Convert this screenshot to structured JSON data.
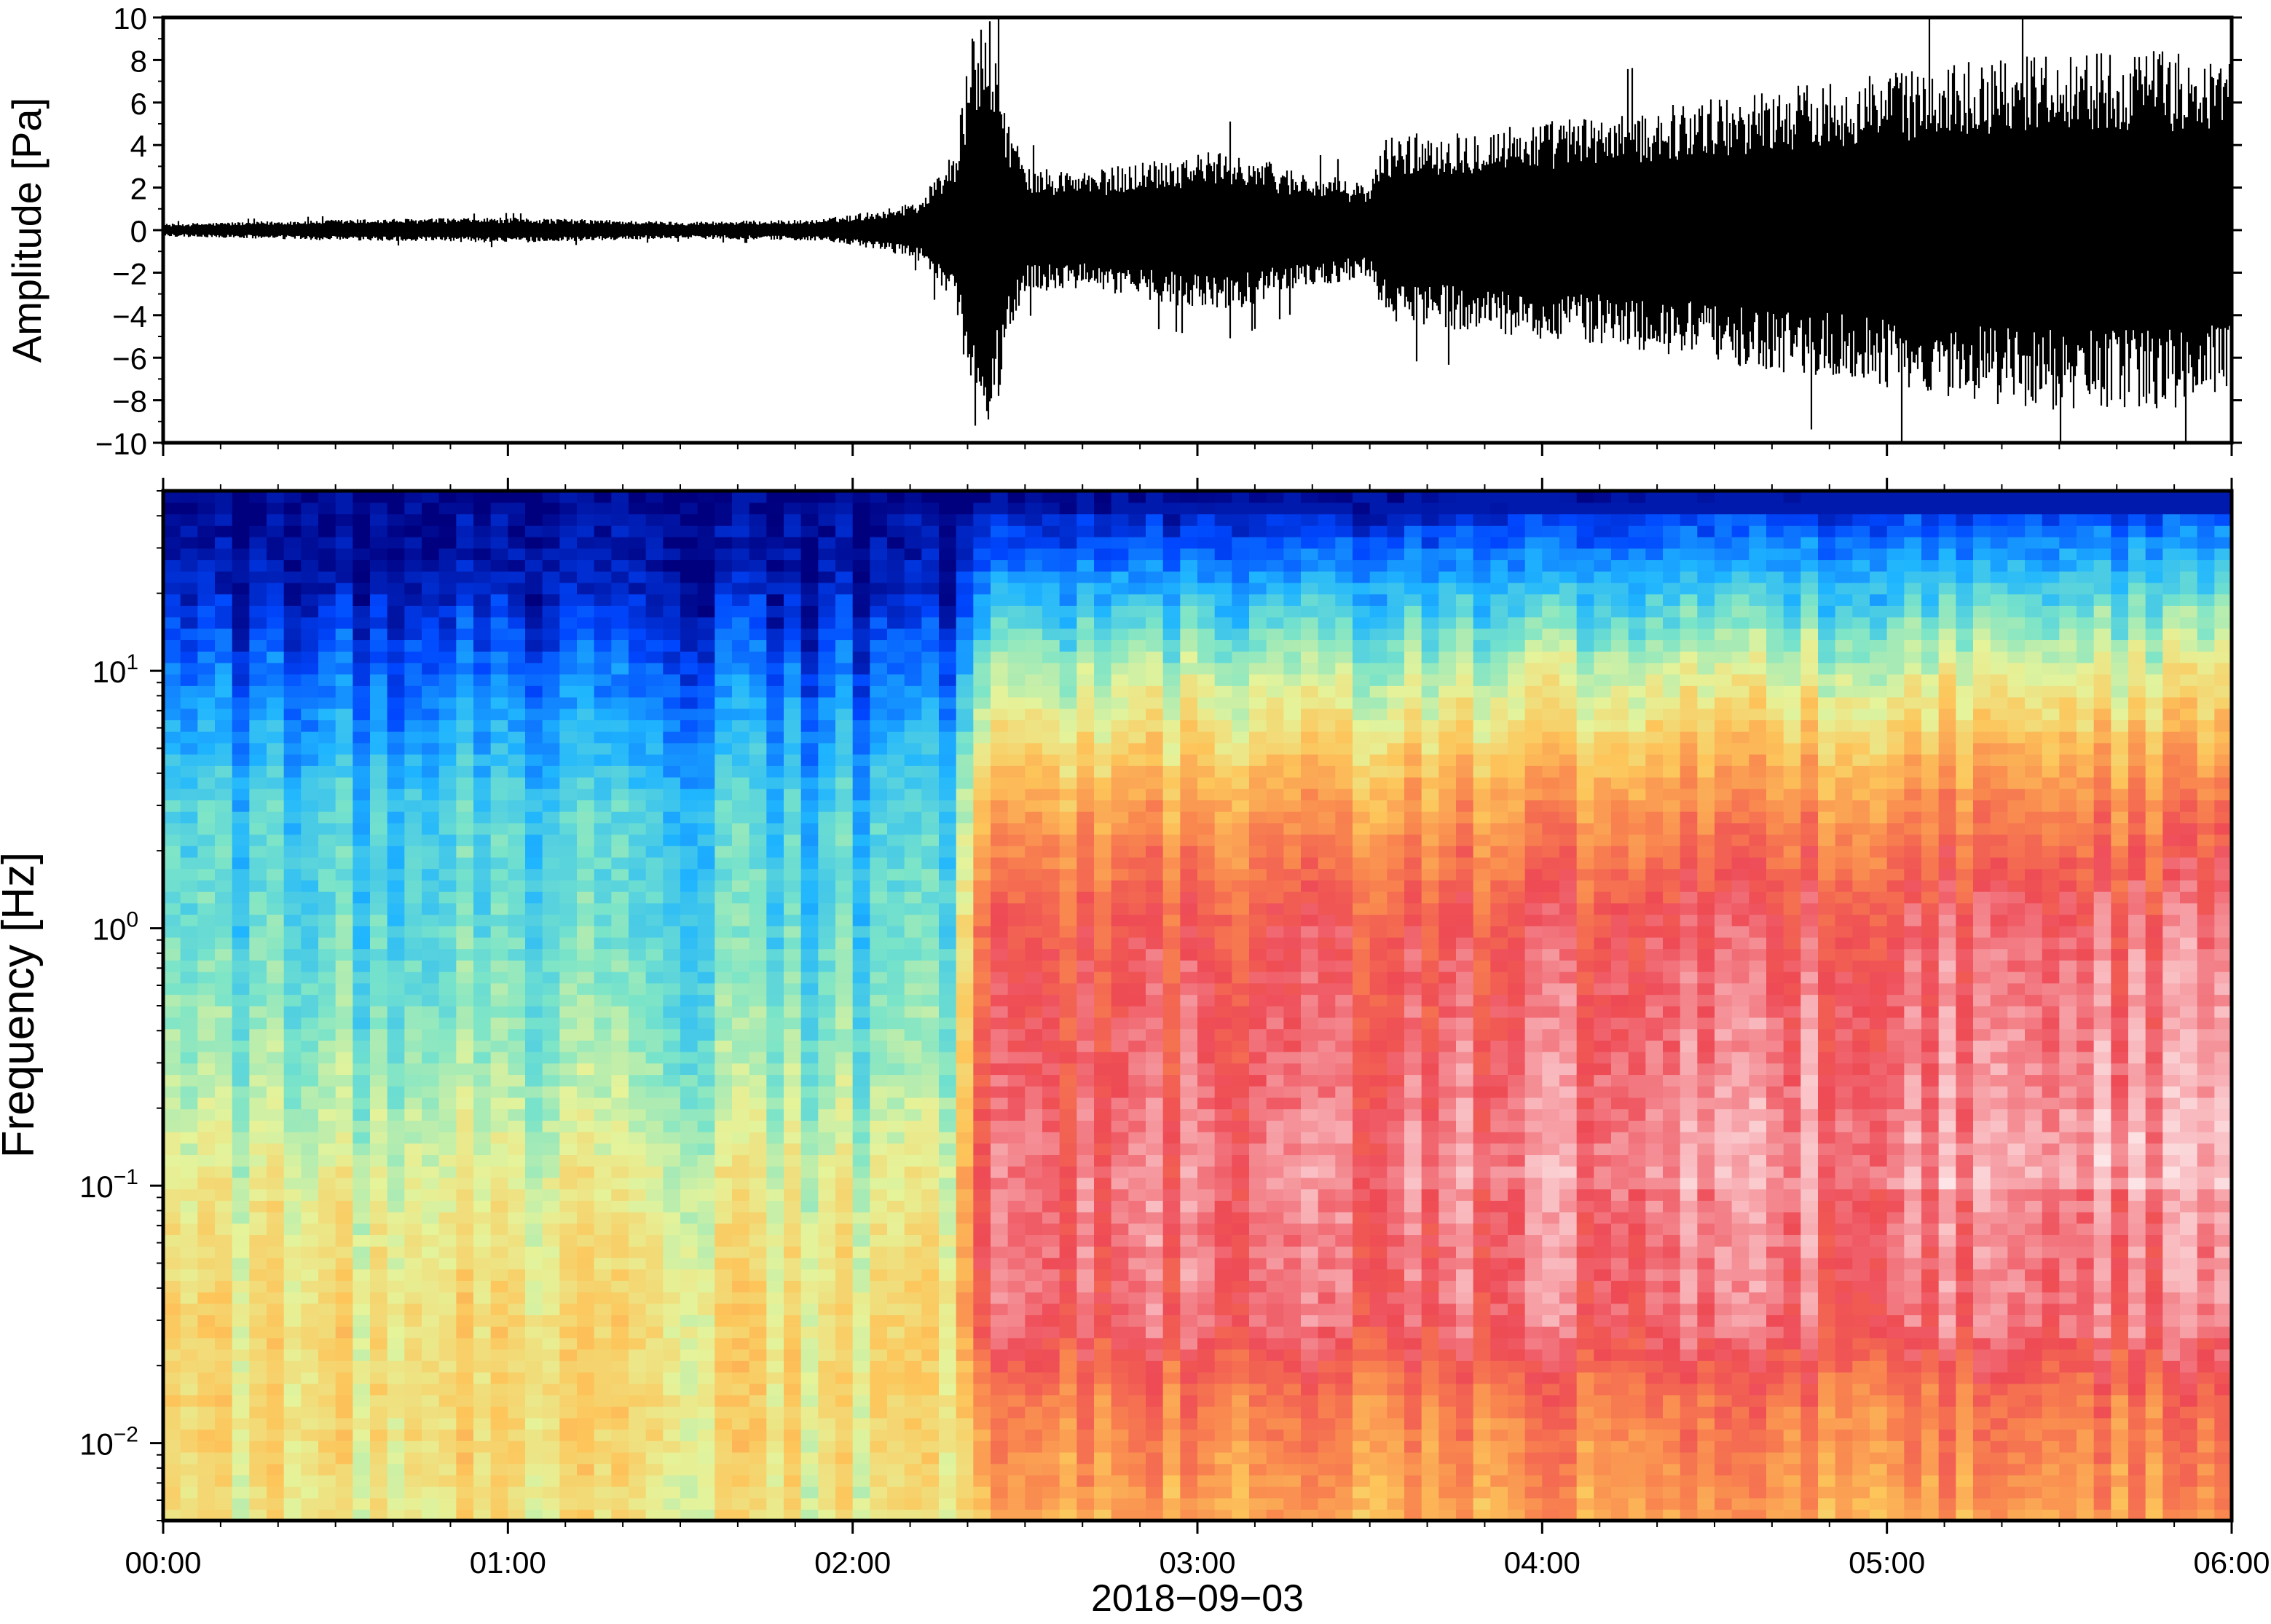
{
  "chart_data": [
    {
      "type": "line",
      "panel": "waveform",
      "ylabel": "Amplitude [Pa]",
      "ylim": [
        -10,
        10
      ],
      "y_ticks": [
        "10",
        "8",
        "6",
        "4",
        "2",
        "0",
        "−2",
        "−4",
        "−6",
        "−8",
        "−10"
      ],
      "y_tick_values": [
        10,
        8,
        6,
        4,
        2,
        0,
        -2,
        -4,
        -6,
        -8,
        -10
      ],
      "x_range_hours": [
        0,
        6
      ],
      "envelope": {
        "time_hours": [
          0.0,
          0.5,
          1.0,
          1.5,
          1.9,
          2.1,
          2.2,
          2.3,
          2.35,
          2.4,
          2.45,
          2.5,
          2.7,
          2.9,
          3.1,
          3.3,
          3.5,
          3.55,
          3.8,
          4.2,
          4.6,
          5.0,
          5.4,
          5.8,
          6.0
        ],
        "amplitude_pa": [
          0.3,
          0.5,
          0.6,
          0.4,
          0.5,
          1.0,
          1.5,
          4.0,
          9.5,
          10.0,
          5.5,
          3.0,
          2.8,
          3.5,
          3.8,
          2.8,
          2.2,
          4.5,
          4.8,
          5.5,
          6.5,
          7.5,
          8.5,
          8.5,
          8.0
        ]
      },
      "color": "#000000"
    },
    {
      "type": "heatmap",
      "panel": "spectrogram",
      "ylabel": "Frequency [Hz]",
      "yscale": "log",
      "ylim_hz": [
        0.005,
        50
      ],
      "y_ticks": [
        {
          "base": "10",
          "exp": "1",
          "value": 10
        },
        {
          "base": "10",
          "exp": "0",
          "value": 1
        },
        {
          "base": "10",
          "exp": "−1",
          "value": 0.1
        },
        {
          "base": "10",
          "exp": "−2",
          "value": 0.01
        }
      ],
      "colormap": [
        "#00007f",
        "#0047ff",
        "#1fb5ff",
        "#7ae4c9",
        "#e5f39a",
        "#fdc55a",
        "#f9864f",
        "#ee4a55",
        "#f8b3b8",
        "#ffffff"
      ],
      "event_onset_hours": 2.32,
      "quiet_profile": [
        {
          "freq_hz": 50,
          "level": 0.0
        },
        {
          "freq_hz": 20,
          "level": 0.05
        },
        {
          "freq_hz": 10,
          "level": 0.14
        },
        {
          "freq_hz": 3,
          "level": 0.27
        },
        {
          "freq_hz": 1,
          "level": 0.3
        },
        {
          "freq_hz": 0.3,
          "level": 0.36
        },
        {
          "freq_hz": 0.1,
          "level": 0.45
        },
        {
          "freq_hz": 0.03,
          "level": 0.5
        },
        {
          "freq_hz": 0.01,
          "level": 0.5
        },
        {
          "freq_hz": 0.005,
          "level": 0.47
        }
      ],
      "active_profile": [
        {
          "freq_hz": 50,
          "level": 0.0
        },
        {
          "freq_hz": 30,
          "level": 0.12
        },
        {
          "freq_hz": 10,
          "level": 0.38
        },
        {
          "freq_hz": 3,
          "level": 0.6
        },
        {
          "freq_hz": 1,
          "level": 0.74
        },
        {
          "freq_hz": 0.3,
          "level": 0.78
        },
        {
          "freq_hz": 0.1,
          "level": 0.82
        },
        {
          "freq_hz": 0.03,
          "level": 0.8
        },
        {
          "freq_hz": 0.015,
          "level": 0.68
        },
        {
          "freq_hz": 0.005,
          "level": 0.6
        }
      ]
    }
  ],
  "x_axis": {
    "ticks": [
      "00:00",
      "01:00",
      "02:00",
      "03:00",
      "04:00",
      "05:00",
      "06:00"
    ],
    "tick_hours": [
      0,
      1,
      2,
      3,
      4,
      5,
      6
    ],
    "date_label": "2018−09−03"
  }
}
